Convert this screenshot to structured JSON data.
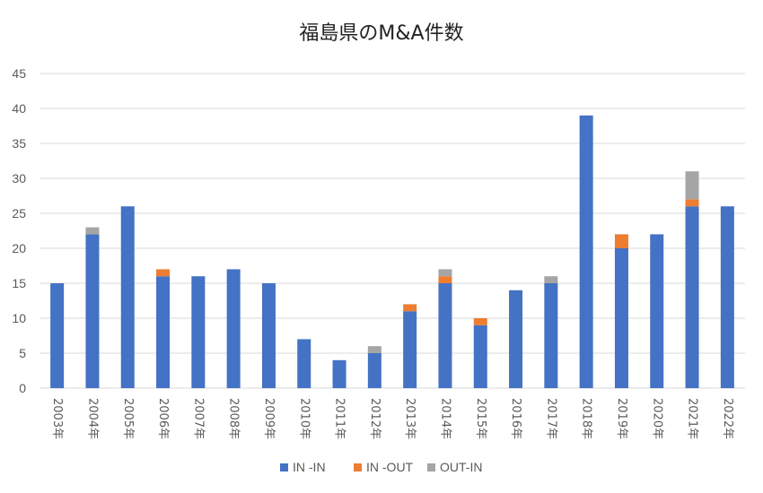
{
  "chart_data": {
    "type": "bar",
    "stacked": true,
    "title": "福島県のM&A件数",
    "xlabel": "",
    "ylabel": "",
    "ylim": [
      0,
      45
    ],
    "yticks": [
      0,
      5,
      10,
      15,
      20,
      25,
      30,
      35,
      40,
      45
    ],
    "grid": true,
    "legend_position": "bottom",
    "categories": [
      "2003年",
      "2004年",
      "2005年",
      "2006年",
      "2007年",
      "2008年",
      "2009年",
      "2010年",
      "2011年",
      "2012年",
      "2013年",
      "2014年",
      "2015年",
      "2016年",
      "2017年",
      "2018年",
      "2019年",
      "2020年",
      "2021年",
      "2022年"
    ],
    "series": [
      {
        "name": "IN -IN",
        "color": "#4472C4",
        "values": [
          15,
          22,
          26,
          16,
          16,
          17,
          15,
          7,
          4,
          5,
          11,
          15,
          9,
          14,
          15,
          39,
          20,
          22,
          26,
          26
        ]
      },
      {
        "name": "IN -OUT",
        "color": "#ED7D31",
        "values": [
          0,
          0,
          0,
          1,
          0,
          0,
          0,
          0,
          0,
          0,
          1,
          1,
          1,
          0,
          0,
          0,
          2,
          0,
          1,
          0
        ]
      },
      {
        "name": "OUT-IN",
        "color": "#A5A5A5",
        "values": [
          0,
          1,
          0,
          0,
          0,
          0,
          0,
          0,
          0,
          1,
          0,
          1,
          0,
          0,
          1,
          0,
          0,
          0,
          4,
          0
        ]
      }
    ]
  }
}
